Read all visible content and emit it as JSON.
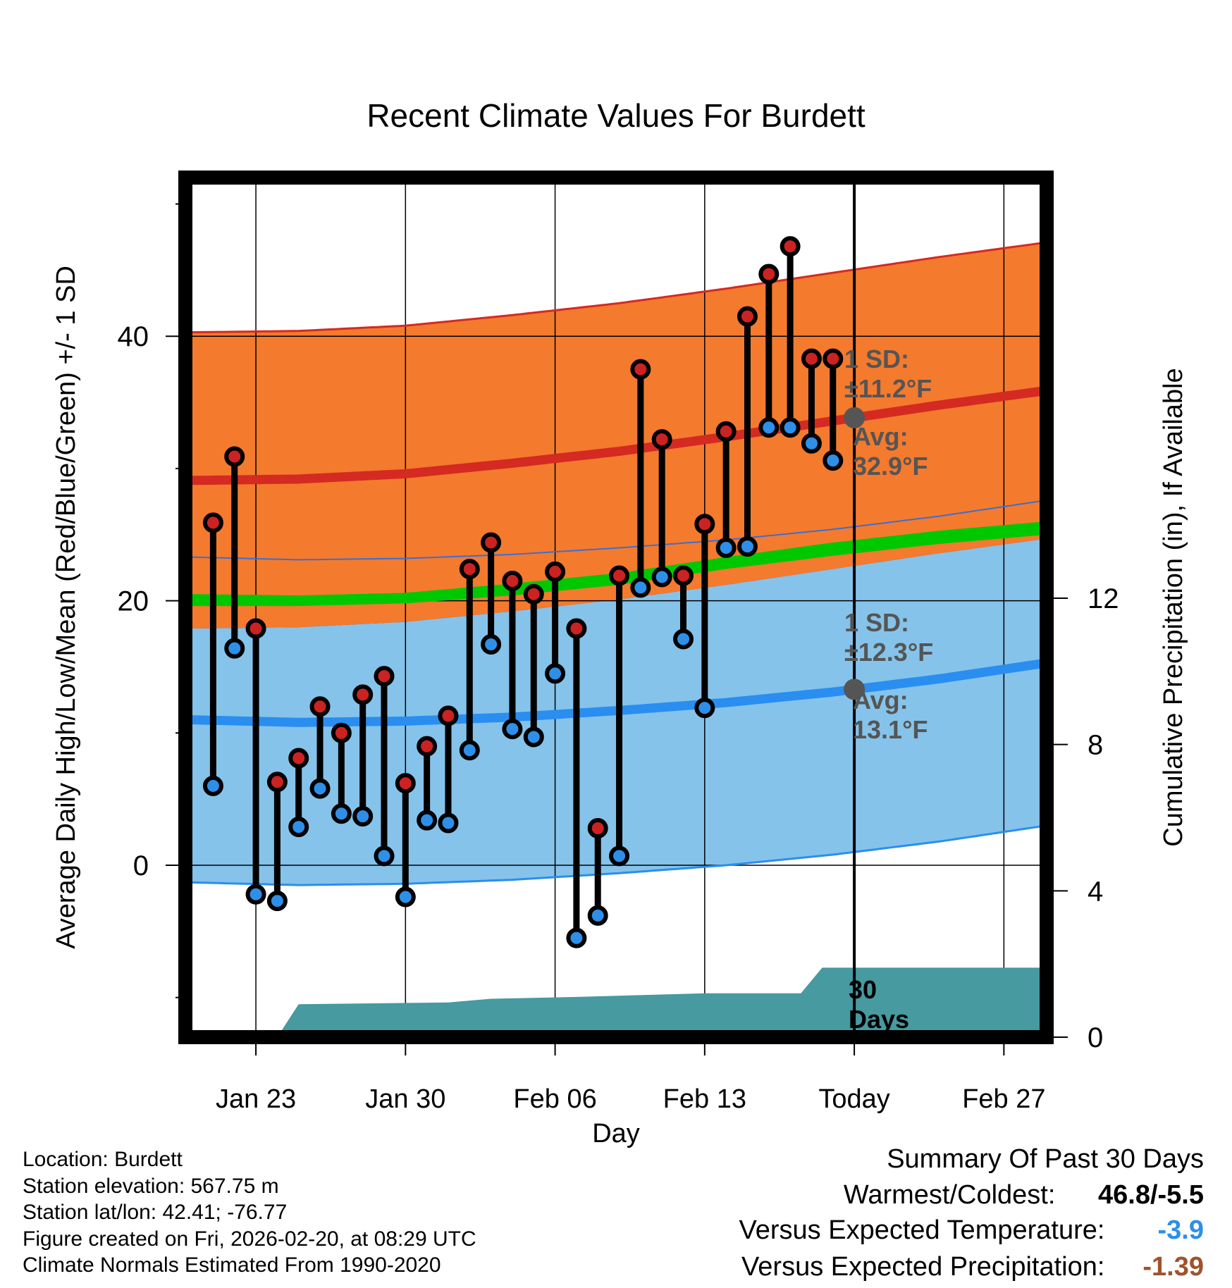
{
  "chart_data": {
    "type": "line",
    "title": "Recent Climate Values For Burdett",
    "xlabel": "Day",
    "ylabel": "Average Daily High/Low/Mean (Red/Blue/Green) +/- 1 SD",
    "y2label": "Cumulative Precipitation (in), If Available",
    "x_tick_labels": [
      "Jan 23",
      "Jan 30",
      "Feb 06",
      "Feb 13",
      "Today",
      "Feb 27"
    ],
    "x_ticks_day": [
      3,
      10,
      17,
      24,
      31,
      38
    ],
    "xlim_day": [
      -0.3,
      40
    ],
    "today_day": 31,
    "y_ticks": [
      0,
      20,
      40
    ],
    "ylim": [
      -13,
      52
    ],
    "y2_ticks": [
      0,
      4,
      8,
      12
    ],
    "y2lim": [
      0,
      23.5
    ],
    "normals": {
      "days": [
        0,
        5,
        10,
        15,
        20,
        25,
        30,
        35,
        40
      ],
      "high_mean": [
        29.1,
        29.2,
        29.6,
        30.4,
        31.3,
        32.4,
        33.6,
        34.8,
        35.9
      ],
      "high_sd": 11.2,
      "low_mean": [
        11.0,
        10.8,
        10.9,
        11.2,
        11.7,
        12.3,
        13.1,
        14.1,
        15.3
      ],
      "low_sd": 12.3,
      "mean_upper": [
        20.5,
        20.4,
        20.6,
        21.3,
        22.1,
        23.3,
        24.4,
        25.3,
        26.0
      ],
      "mean_lower": [
        19.6,
        19.6,
        19.8,
        20.4,
        21.2,
        22.4,
        23.4,
        24.3,
        25.0
      ]
    },
    "series": [
      {
        "name": "Daily High",
        "color": "#cc2222",
        "days": [
          1,
          2,
          3,
          4,
          5,
          6,
          7,
          8,
          9,
          10,
          11,
          12,
          13,
          14,
          15,
          16,
          17,
          18,
          19,
          20,
          21,
          22,
          23,
          24,
          25,
          26,
          27,
          28,
          29,
          30
        ],
        "values": [
          25.9,
          30.9,
          17.9,
          6.3,
          8.1,
          12.0,
          10.0,
          12.9,
          14.3,
          6.2,
          9.0,
          11.3,
          22.4,
          24.4,
          21.5,
          20.5,
          22.2,
          17.9,
          2.8,
          21.9,
          37.5,
          32.2,
          21.9,
          25.8,
          32.8,
          41.5,
          44.7,
          46.8,
          38.3,
          38.3
        ]
      },
      {
        "name": "Daily Low",
        "color": "#2e8fe8",
        "days": [
          1,
          2,
          3,
          4,
          5,
          6,
          7,
          8,
          9,
          10,
          11,
          12,
          13,
          14,
          15,
          16,
          17,
          18,
          19,
          20,
          21,
          22,
          23,
          24,
          25,
          26,
          27,
          28,
          29,
          30
        ],
        "values": [
          6.0,
          16.4,
          -2.2,
          -2.7,
          2.9,
          5.8,
          3.9,
          3.7,
          0.7,
          -2.4,
          3.4,
          3.2,
          8.7,
          16.7,
          10.3,
          9.7,
          14.5,
          -5.5,
          -3.8,
          0.7,
          21.0,
          21.8,
          17.1,
          11.9,
          24.0,
          24.1,
          33.1,
          33.1,
          31.9,
          30.6
        ]
      }
    ],
    "precip": {
      "name": "Cumulative Precipitation",
      "color": "#469aa0",
      "days": [
        4,
        5,
        12,
        14,
        18,
        24,
        28.5,
        29.5,
        40
      ],
      "values": [
        0,
        0.9,
        0.95,
        1.05,
        1.1,
        1.2,
        1.2,
        1.9,
        1.9
      ]
    },
    "annotations": {
      "high_sd": "1 SD:",
      "high_sd_value": "±11.2°F",
      "high_avg": "Avg:",
      "high_avg_value": "32.9°F",
      "low_sd": "1 SD:",
      "low_sd_value": "±12.3°F",
      "low_avg": "Avg:",
      "low_avg_value": "13.1°F",
      "days_number": "30",
      "days_word": "Days"
    }
  },
  "location_info": {
    "location": "Location: Burdett",
    "elevation": "Station elevation: 567.75 m",
    "latlon": "Station lat/lon: 42.41; -76.77",
    "created": "Figure created on Fri, 2026-02-20, at 08:29 UTC",
    "normals": "Climate Normals Estimated From 1990-2020"
  },
  "summary": {
    "title": "Summary Of Past 30 Days",
    "warm_cold_label": "Warmest/Coldest:",
    "warm_cold_value": "46.8/-5.5",
    "temp_label": "Versus Expected Temperature:",
    "temp_value": "-3.9",
    "temp_color": "#2e8fe8",
    "precip_label": "Versus Expected Precipitation:",
    "precip_value": "-1.39",
    "precip_color": "#a0522d"
  },
  "colors": {
    "high_band": "#f47a2e",
    "high_line": "#d42a22",
    "overlap_band": "#8c0f14",
    "mean_band": "#00c800",
    "low_band": "#86c3ea",
    "low_line": "#2a8ef0",
    "precip_fill": "#469aa0",
    "annotation": "#555555"
  }
}
